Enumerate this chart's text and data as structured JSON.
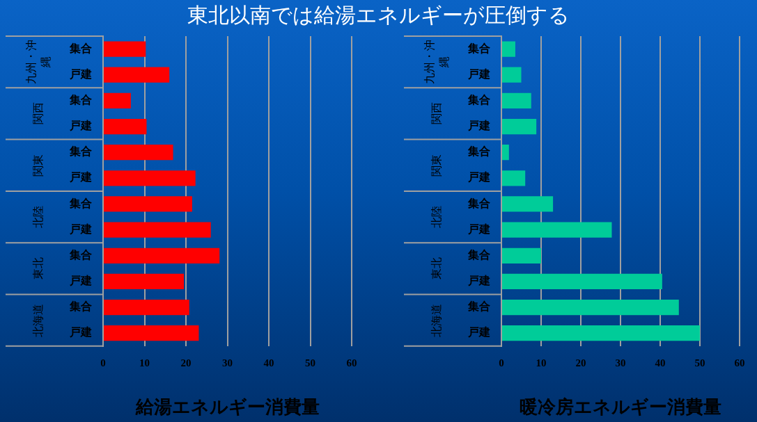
{
  "chart_data": [
    {
      "type": "bar",
      "orientation": "horizontal",
      "title": "東北以南では給湯エネルギーが圧倒する",
      "xlabel": "給湯エネルギー消費量",
      "categories": [
        "九州・沖縄",
        "関西",
        "関東",
        "北陸",
        "東北",
        "北海道"
      ],
      "series": [
        {
          "name": "集合",
          "color": "#ff0000",
          "values": [
            10.3,
            6.7,
            16.9,
            21.5,
            28.1,
            20.8
          ]
        },
        {
          "name": "戸建",
          "color": "#ff0000",
          "values": [
            16.0,
            10.5,
            22.3,
            26.0,
            19.5,
            23.1
          ]
        }
      ],
      "xlim": [
        0,
        60
      ],
      "xticks": [
        0,
        10,
        20,
        30,
        40,
        50,
        60
      ],
      "grid": "x"
    },
    {
      "type": "bar",
      "orientation": "horizontal",
      "xlabel": "暖冷房エネルギー消費量",
      "categories": [
        "九州・沖縄",
        "関西",
        "関東",
        "北陸",
        "東北",
        "北海道"
      ],
      "series": [
        {
          "name": "集合",
          "color": "#00cc99",
          "values": [
            3.5,
            7.5,
            1.9,
            13.0,
            10.0,
            44.7
          ]
        },
        {
          "name": "戸建",
          "color": "#00cc99",
          "values": [
            5.0,
            8.8,
            6.0,
            27.8,
            40.5,
            50.0
          ]
        }
      ],
      "xlim": [
        0,
        60
      ],
      "xticks": [
        0,
        10,
        20,
        30,
        40,
        50,
        60
      ],
      "grid": "x"
    }
  ]
}
